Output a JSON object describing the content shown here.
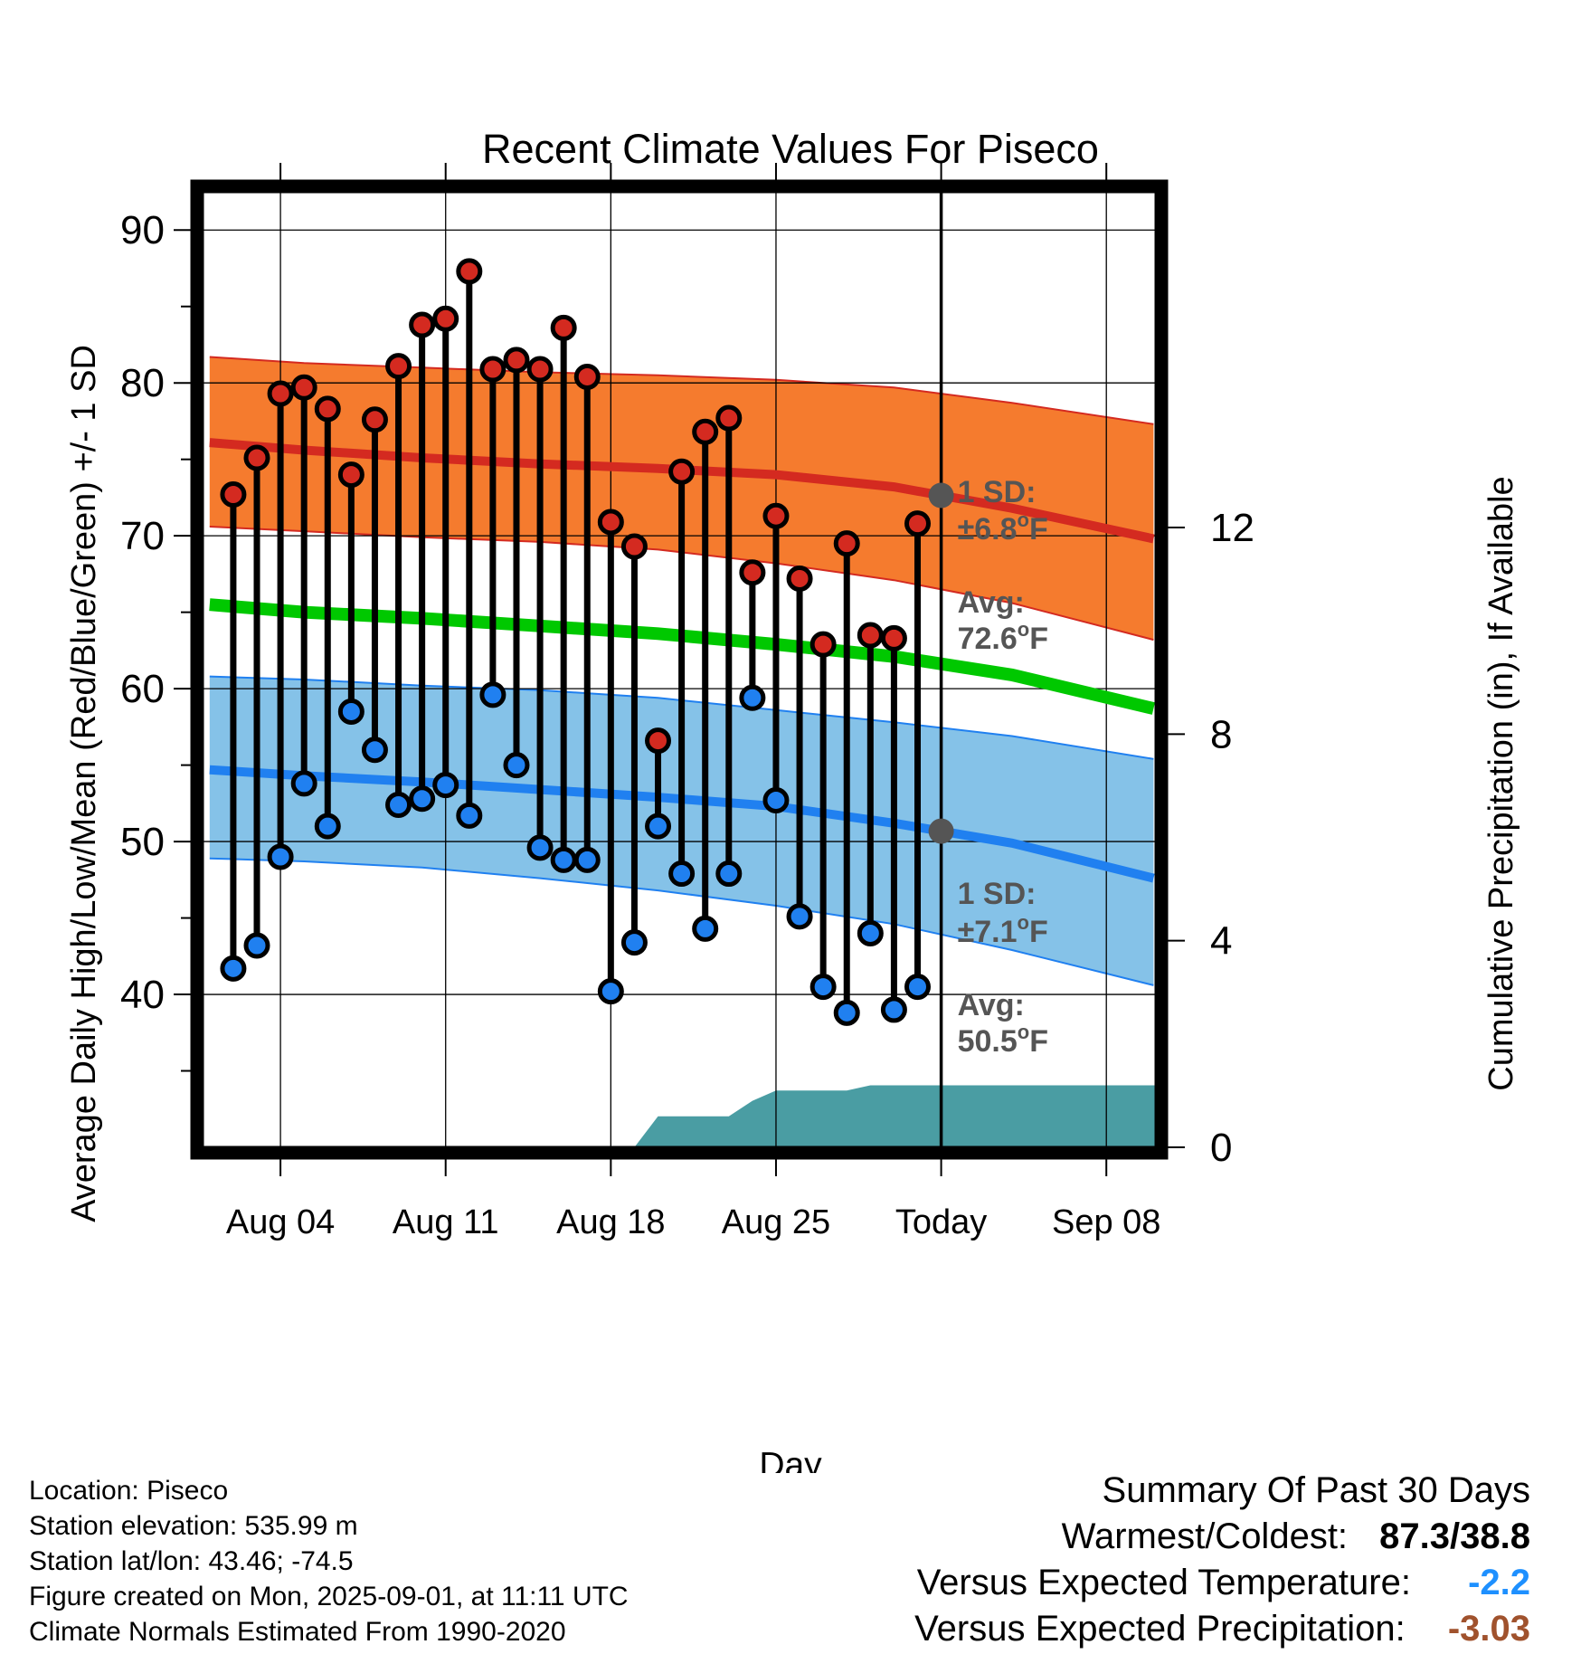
{
  "chart_data": {
    "type": "line",
    "title": "Recent Climate Values For Piseco",
    "xlabel": "Day",
    "ylabel": "Average Daily High/Low/Mean (Red/Blue/Green) +/- 1 SD",
    "y2label": "Cumulative Precipitation (in), If Available",
    "ylim": [
      30,
      92.5
    ],
    "y_ticks": [
      40,
      50,
      60,
      70,
      80,
      90
    ],
    "y2lim": [
      0,
      18.5
    ],
    "y2_ticks": [
      0,
      4,
      8,
      12
    ],
    "x_ticks": [
      {
        "day": 4,
        "label": "Aug 04"
      },
      {
        "day": 11,
        "label": "Aug 11"
      },
      {
        "day": 18,
        "label": "Aug 18"
      },
      {
        "day": 25,
        "label": "Aug 25"
      },
      {
        "day": 32,
        "label": "Today"
      },
      {
        "day": 39,
        "label": "Sep 08"
      }
    ],
    "x_range_days": [
      0.7,
      41.1
    ],
    "today_day": 32,
    "grid": true,
    "colors": {
      "high": "#d42a20",
      "low": "#2080f0",
      "mean": "#00c800",
      "high_band": "#f57b2e",
      "low_band": "#85c2e8",
      "precip": "#4a9da3"
    },
    "observed": {
      "dates": [
        "Aug 02",
        "Aug 03",
        "Aug 04",
        "Aug 05",
        "Aug 06",
        "Aug 07",
        "Aug 08",
        "Aug 09",
        "Aug 10",
        "Aug 11",
        "Aug 12",
        "Aug 13",
        "Aug 14",
        "Aug 15",
        "Aug 16",
        "Aug 17",
        "Aug 18",
        "Aug 19",
        "Aug 20",
        "Aug 21",
        "Aug 22",
        "Aug 23",
        "Aug 24",
        "Aug 25",
        "Aug 26",
        "Aug 27",
        "Aug 28",
        "Aug 29",
        "Aug 30",
        "Aug 31"
      ],
      "highs": [
        72.7,
        75.1,
        79.3,
        79.7,
        78.3,
        74.0,
        77.6,
        81.1,
        83.8,
        84.2,
        87.3,
        80.9,
        81.5,
        80.9,
        83.6,
        80.4,
        70.9,
        69.3,
        56.6,
        74.2,
        76.8,
        77.7,
        67.6,
        71.3,
        67.2,
        62.9,
        69.5,
        63.5,
        63.3,
        70.8
      ],
      "lows": [
        41.7,
        43.2,
        49.0,
        53.8,
        51.0,
        58.5,
        56.0,
        52.4,
        52.8,
        53.7,
        51.7,
        59.6,
        55.0,
        49.6,
        48.8,
        48.8,
        40.2,
        43.4,
        51.0,
        47.9,
        44.3,
        47.9,
        59.4,
        52.7,
        45.1,
        40.5,
        38.8,
        44.0,
        39.0,
        40.5
      ]
    },
    "normals": {
      "days": [
        1,
        5,
        10,
        15,
        20,
        25,
        30,
        35,
        41
      ],
      "high_avg": [
        76.1,
        75.6,
        75.1,
        74.7,
        74.4,
        74.0,
        73.2,
        71.8,
        69.8
      ],
      "high_sd_upper": [
        81.7,
        81.3,
        81.0,
        80.7,
        80.5,
        80.2,
        79.7,
        78.7,
        77.3
      ],
      "high_sd_lower": [
        70.6,
        70.3,
        69.9,
        69.6,
        69.1,
        68.2,
        67.1,
        65.6,
        63.2
      ],
      "low_avg": [
        54.7,
        54.3,
        53.9,
        53.4,
        52.9,
        52.3,
        51.2,
        49.9,
        47.6
      ],
      "low_sd_upper": [
        60.8,
        60.6,
        60.2,
        59.9,
        59.4,
        58.6,
        57.8,
        56.9,
        55.4
      ],
      "low_sd_lower": [
        48.9,
        48.7,
        48.3,
        47.6,
        46.8,
        45.8,
        44.6,
        42.9,
        40.6
      ],
      "mean": [
        65.5,
        65.0,
        64.6,
        64.1,
        63.6,
        62.9,
        62.1,
        60.9,
        58.7
      ]
    },
    "precip_cumulative": {
      "days": [
        0.7,
        1,
        19,
        20,
        23,
        24,
        25,
        28,
        29,
        32,
        41.1
      ],
      "values": [
        0.0,
        0.0,
        0.0,
        0.6,
        0.6,
        0.9,
        1.1,
        1.1,
        1.2,
        1.2,
        1.2
      ]
    },
    "annotations": {
      "high_sd_label": "1 SD:",
      "high_sd_value": "±6.8",
      "high_avg_label": "Avg:",
      "high_avg_value": "72.6",
      "low_sd_label": "1 SD:",
      "low_sd_value": "±7.1",
      "low_avg_label": "Avg:",
      "low_avg_value": "50.5",
      "degree_symbol": "o",
      "unit": "F",
      "period_number": "30",
      "period_unit": "Days"
    }
  },
  "info": {
    "location": "Location: Piseco",
    "elevation": "Station elevation: 535.99 m",
    "latlon": "Station lat/lon: 43.46; -74.5",
    "created": "Figure created on Mon, 2025-09-01, at 11:11 UTC",
    "normals": "Climate Normals Estimated From 1990-2020"
  },
  "summary": {
    "title": "Summary Of Past 30 Days",
    "warm_cold_label": "Warmest/Coldest:",
    "warm_cold_value": "87.3/38.8",
    "temp_label": "Versus Expected Temperature:",
    "temp_value": "-2.2",
    "temp_color": "#1e90ff",
    "precip_label": "Versus Expected Precipitation:",
    "precip_value": "-3.03",
    "precip_color": "#a0522d"
  }
}
